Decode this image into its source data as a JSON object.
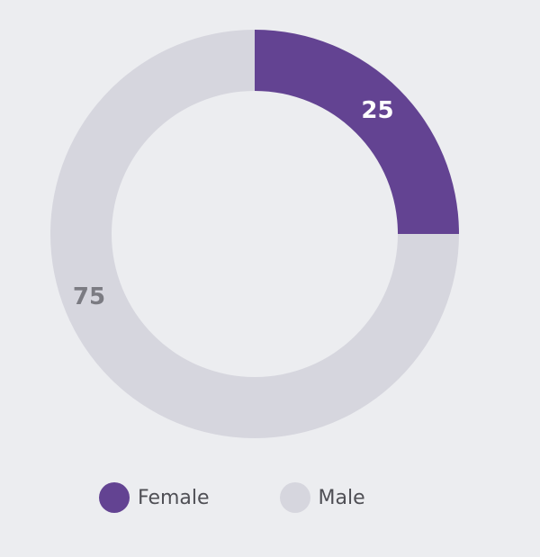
{
  "chart_data": {
    "type": "pie",
    "variant": "donut",
    "categories": [
      "Female",
      "Male"
    ],
    "values": [
      25,
      75
    ],
    "colors": [
      "#634392",
      "#d6d6de"
    ],
    "label_colors": [
      "#ffffff",
      "#7b7b82"
    ],
    "legend_position": "bottom-left"
  }
}
